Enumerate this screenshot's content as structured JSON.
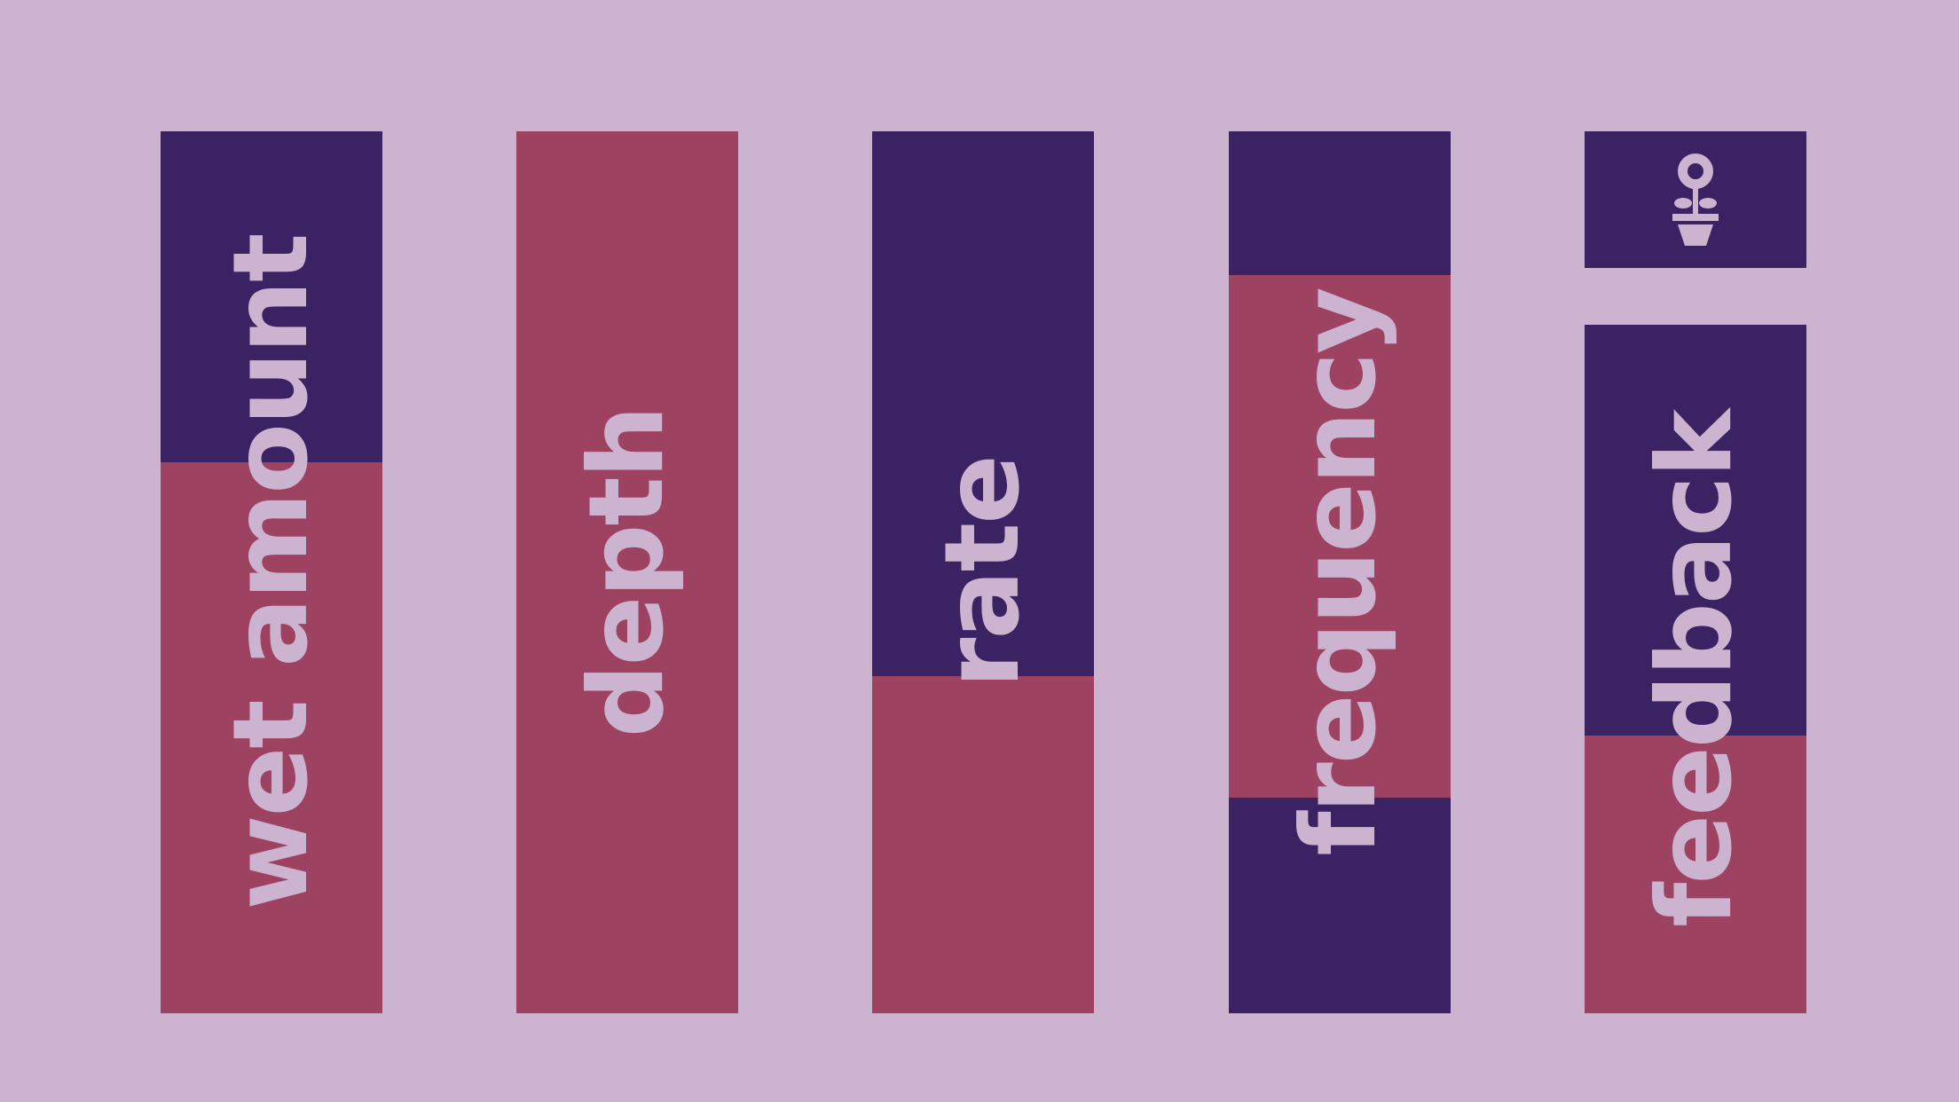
{
  "colors": {
    "background": "#ccb3d0",
    "track": "#9e4262",
    "fill": "#3b2262",
    "text": "#ccb3d0"
  },
  "icon_button": {
    "icon": "flower-pot-icon"
  },
  "sliders": [
    {
      "name": "wet-amount",
      "label": "wet amount",
      "value_top": 1.0,
      "value_bottom": 0.625
    },
    {
      "name": "depth",
      "label": "depth",
      "value_top": 0.0,
      "value_bottom": 0.0
    },
    {
      "name": "rate",
      "label": "rate",
      "value_top": 1.0,
      "value_bottom": 0.382
    },
    {
      "name": "frequency",
      "label": "frequency",
      "value_top": 1.0,
      "value_bottom": 0.837,
      "extra_fill_bottom": 0.244
    },
    {
      "name": "feedback",
      "label": "feedback",
      "value_top": 1.0,
      "value_bottom": 0.403
    }
  ]
}
